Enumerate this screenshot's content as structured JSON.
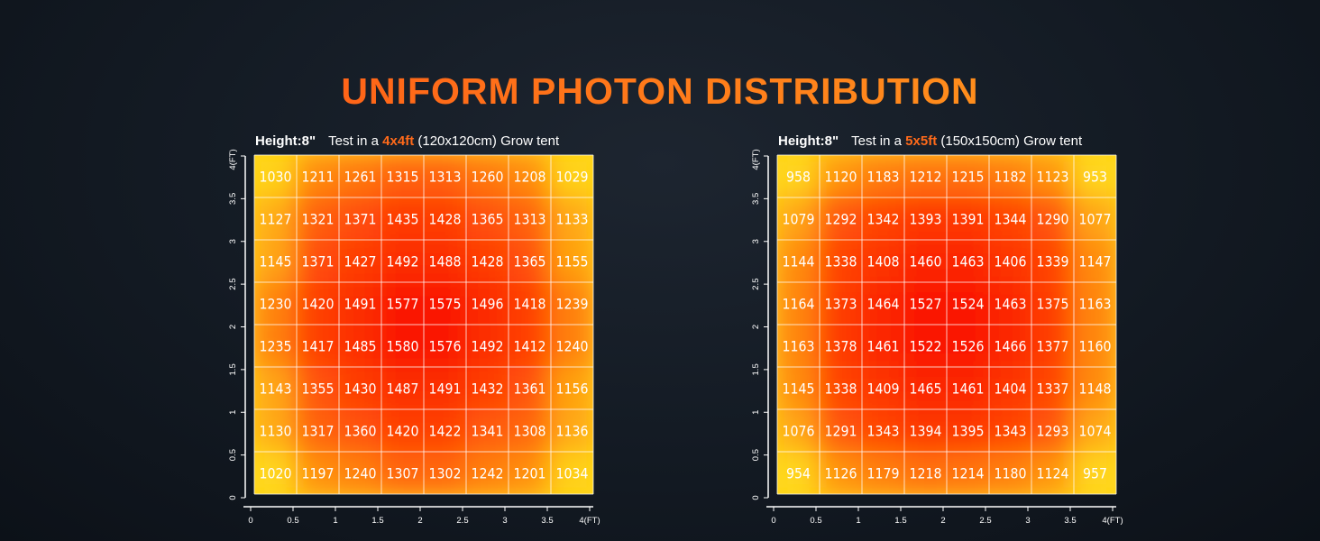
{
  "page": {
    "title": "UNIFORM PHOTON DISTRIBUTION"
  },
  "colors": {
    "accent": "#ff6a1a",
    "heat_low": "#ffd21a",
    "heat_mid": "#ff7a10",
    "heat_high": "#ff1a00"
  },
  "chart_data": [
    {
      "type": "heatmap",
      "subtitle": {
        "height_label": "Height:8\"",
        "prefix": "Test in a",
        "size": "4x4ft",
        "suffix": "(120x120cm) Grow tent"
      },
      "x_ticks": [
        "0",
        "0.5",
        "1",
        "1.5",
        "2",
        "2.5",
        "3",
        "3.5",
        "4(FT)"
      ],
      "y_ticks": [
        "0",
        "0.5",
        "1",
        "1.5",
        "2",
        "2.5",
        "3",
        "3.5",
        "4(FT)"
      ],
      "xlim": [
        0,
        4
      ],
      "ylim": [
        0,
        4
      ],
      "values": [
        [
          1030,
          1211,
          1261,
          1315,
          1313,
          1260,
          1208,
          1029
        ],
        [
          1127,
          1321,
          1371,
          1435,
          1428,
          1365,
          1313,
          1133
        ],
        [
          1145,
          1371,
          1427,
          1492,
          1488,
          1428,
          1365,
          1155
        ],
        [
          1230,
          1420,
          1491,
          1577,
          1575,
          1496,
          1418,
          1239
        ],
        [
          1235,
          1417,
          1485,
          1580,
          1576,
          1492,
          1412,
          1240
        ],
        [
          1143,
          1355,
          1430,
          1487,
          1491,
          1432,
          1361,
          1156
        ],
        [
          1130,
          1317,
          1360,
          1420,
          1422,
          1341,
          1308,
          1136
        ],
        [
          1020,
          1197,
          1240,
          1307,
          1302,
          1242,
          1201,
          1034
        ]
      ]
    },
    {
      "type": "heatmap",
      "subtitle": {
        "height_label": "Height:8\"",
        "prefix": "Test in a",
        "size": "5x5ft",
        "suffix": "(150x150cm) Grow tent"
      },
      "x_ticks": [
        "0",
        "0.5",
        "1",
        "1.5",
        "2",
        "2.5",
        "3",
        "3.5",
        "4(FT)"
      ],
      "y_ticks": [
        "0",
        "0.5",
        "1",
        "1.5",
        "2",
        "2.5",
        "3",
        "3.5",
        "4(FT)"
      ],
      "xlim": [
        0,
        4
      ],
      "ylim": [
        0,
        4
      ],
      "values": [
        [
          958,
          1120,
          1183,
          1212,
          1215,
          1182,
          1123,
          953
        ],
        [
          1079,
          1292,
          1342,
          1393,
          1391,
          1344,
          1290,
          1077
        ],
        [
          1144,
          1338,
          1408,
          1460,
          1463,
          1406,
          1339,
          1147
        ],
        [
          1164,
          1373,
          1464,
          1527,
          1524,
          1463,
          1375,
          1163
        ],
        [
          1163,
          1378,
          1461,
          1522,
          1526,
          1466,
          1377,
          1160
        ],
        [
          1145,
          1338,
          1409,
          1465,
          1461,
          1404,
          1337,
          1148
        ],
        [
          1076,
          1291,
          1343,
          1394,
          1395,
          1343,
          1293,
          1074
        ],
        [
          954,
          1126,
          1179,
          1218,
          1214,
          1180,
          1124,
          957
        ]
      ]
    }
  ]
}
